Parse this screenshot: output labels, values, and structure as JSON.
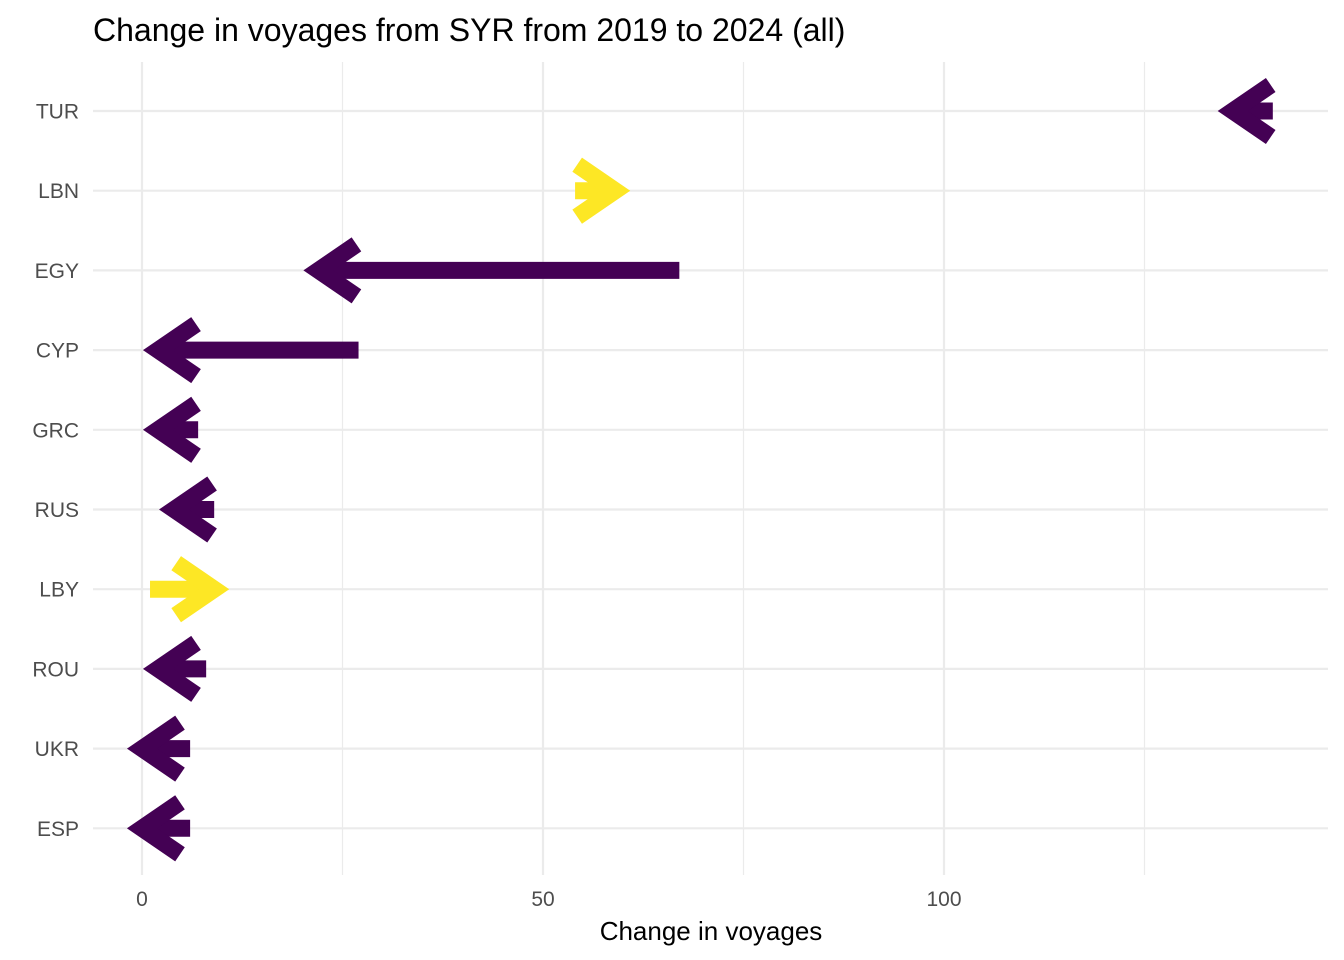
{
  "chart_data": {
    "type": "arrow",
    "title": "Change in voyages from SYR from 2019 to 2024 (all)",
    "xlabel": "Change in voyages",
    "ylabel": "",
    "xlim": [
      -4.8,
      118
    ],
    "x_ticks": [
      0,
      50,
      100
    ],
    "x_minor_ticks": [
      25,
      75,
      125
    ],
    "grid": true,
    "legend": "none",
    "colors": {
      "decrease": "#440154",
      "increase": "#FDE725",
      "grid": "#ebebeb",
      "tick_text": "#4d4d4d"
    },
    "categories": [
      "TUR",
      "LBN",
      "EGY",
      "CYP",
      "GRC",
      "RUS",
      "LBY",
      "ROU",
      "UKR",
      "ESP"
    ],
    "arrows": [
      {
        "category": "TUR",
        "from": 141,
        "to": 136,
        "direction": "decrease"
      },
      {
        "category": "LBN",
        "from": 54,
        "to": 59,
        "direction": "increase"
      },
      {
        "category": "EGY",
        "from": 67,
        "to": 22,
        "direction": "decrease"
      },
      {
        "category": "CYP",
        "from": 27,
        "to": 2,
        "direction": "decrease"
      },
      {
        "category": "GRC",
        "from": 7,
        "to": 2,
        "direction": "decrease"
      },
      {
        "category": "RUS",
        "from": 9,
        "to": 4,
        "direction": "decrease"
      },
      {
        "category": "LBY",
        "from": 1,
        "to": 9,
        "direction": "increase"
      },
      {
        "category": "ROU",
        "from": 8,
        "to": 2,
        "direction": "decrease"
      },
      {
        "category": "UKR",
        "from": 6,
        "to": 0,
        "direction": "decrease"
      },
      {
        "category": "ESP",
        "from": 6,
        "to": 0,
        "direction": "decrease"
      }
    ]
  }
}
